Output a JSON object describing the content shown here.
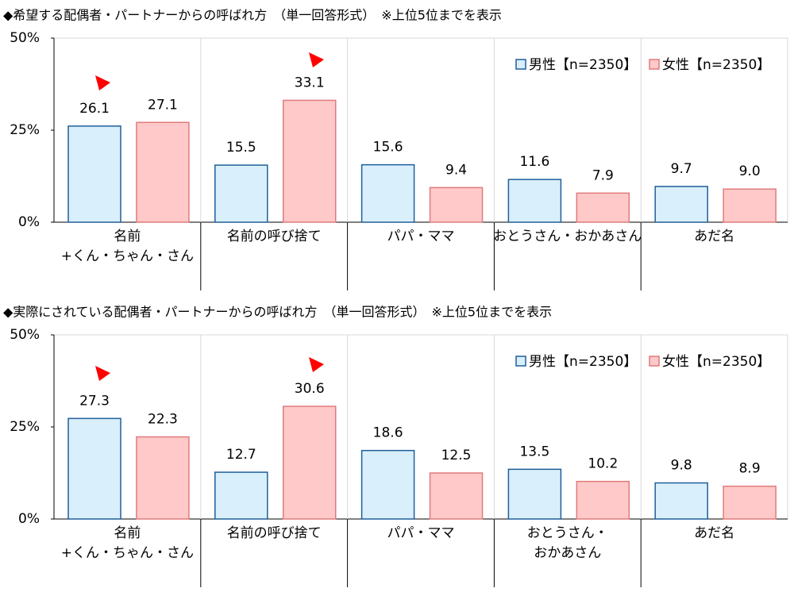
{
  "chart_data": [
    {
      "type": "bar",
      "title": "◆希望する配偶者・パートナーからの呼ばれ方　（単一回答形式）　※上位5位までを表示",
      "categories": [
        [
          "名前",
          "+くん・ちゃん・さん"
        ],
        [
          "名前の呼び捨て"
        ],
        [
          "パパ・ママ"
        ],
        [
          "おとうさん・おかあさん"
        ],
        [
          "あだ名"
        ]
      ],
      "series": [
        {
          "name": "男性【n=2350】",
          "color": "#d9effb",
          "values": [
            26.1,
            15.5,
            15.6,
            11.6,
            9.7
          ]
        },
        {
          "name": "女性【n=2350】",
          "color": "#ffc9c9",
          "values": [
            27.1,
            33.1,
            9.4,
            7.9,
            9.0
          ],
          "value_labels": [
            "27.1",
            "33.1",
            "9.4",
            "7.9",
            "9.0"
          ]
        }
      ],
      "ylim": [
        0,
        50
      ],
      "yticks": [
        {
          "value": 0,
          "label": "0%"
        },
        {
          "value": 25,
          "label": "25%"
        },
        {
          "value": 50,
          "label": "50%"
        }
      ],
      "legend": "upper right"
    },
    {
      "type": "bar",
      "title": "◆実際にされている配偶者・パートナーからの呼ばれ方　（単一回答形式）　※上位5位までを表示",
      "categories": [
        [
          "名前",
          "+くん・ちゃん・さん"
        ],
        [
          "名前の呼び捨て"
        ],
        [
          "パパ・ママ"
        ],
        [
          "おとうさん・",
          "おかあさん"
        ],
        [
          "あだ名"
        ]
      ],
      "series": [
        {
          "name": "男性【n=2350】",
          "color": "#d9effb",
          "values": [
            27.3,
            12.7,
            18.6,
            13.5,
            9.8
          ]
        },
        {
          "name": "女性【n=2350】",
          "color": "#ffc9c9",
          "values": [
            22.3,
            30.6,
            12.5,
            10.2,
            8.9
          ]
        }
      ],
      "ylim": [
        0,
        50
      ],
      "yticks": [
        {
          "value": 0,
          "label": "0%"
        },
        {
          "value": 25,
          "label": "25%"
        },
        {
          "value": 50,
          "label": "50%"
        }
      ],
      "legend": "upper right"
    }
  ]
}
